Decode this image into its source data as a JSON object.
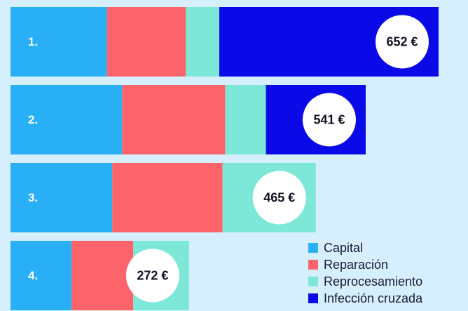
{
  "chart_data": {
    "type": "stacked-barh",
    "categories": [
      "1.",
      "2.",
      "3.",
      "4."
    ],
    "series": [
      {
        "name": "Capital",
        "color": "#29aff5",
        "values": [
          147,
          170,
          155,
          93
        ]
      },
      {
        "name": "Reparación",
        "color": "#fc636b",
        "values": [
          120,
          157,
          168,
          94
        ]
      },
      {
        "name": "Reprocesamiento",
        "color": "#7de8d8",
        "values": [
          51,
          62,
          142,
          85
        ]
      },
      {
        "name": "Infección cruzada",
        "color": "#0a0ae8",
        "values": [
          334,
          152,
          0,
          0
        ]
      }
    ],
    "totals": [
      652,
      541,
      465,
      272
    ],
    "total_labels": [
      "652 €",
      "541 €",
      "465 €",
      "272 €"
    ],
    "legend": "lower right"
  }
}
